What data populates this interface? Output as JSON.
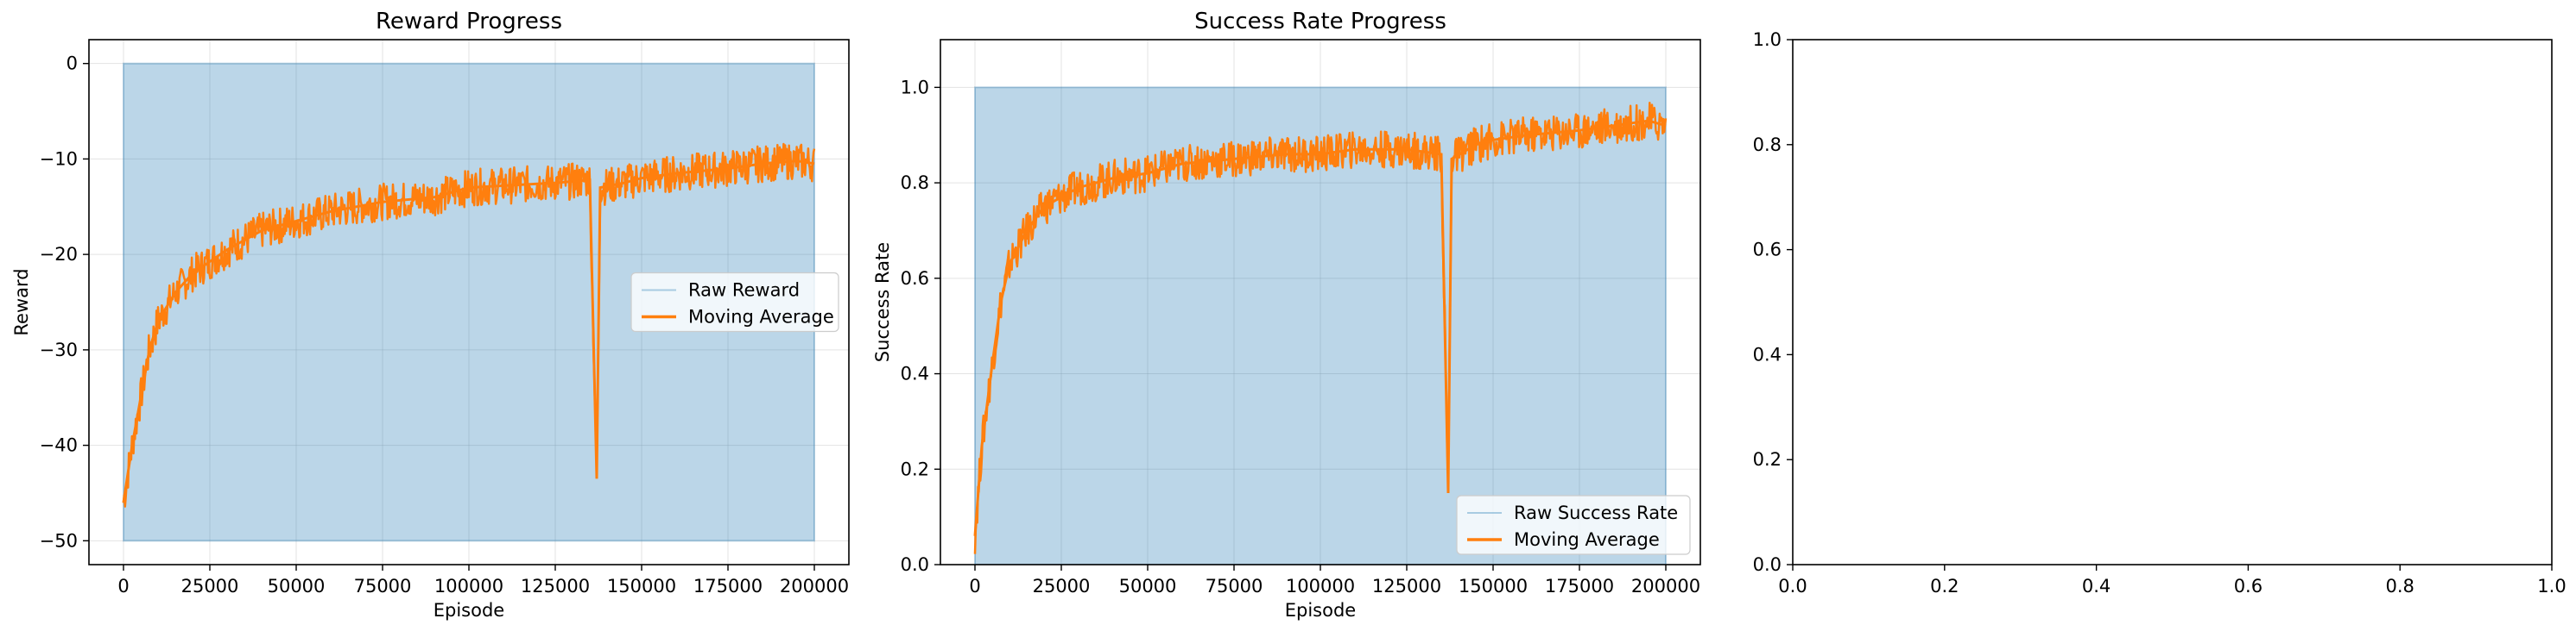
{
  "chart_data": [
    {
      "type": "line",
      "title": "Reward Progress",
      "xlabel": "Episode",
      "ylabel": "Reward",
      "xlim": [
        -10000,
        210000
      ],
      "ylim": [
        -52.5,
        2.5
      ],
      "xticks": [
        0,
        25000,
        50000,
        75000,
        100000,
        125000,
        150000,
        175000,
        200000
      ],
      "yticks": [
        -50,
        -40,
        -30,
        -20,
        -10,
        0
      ],
      "ytick_labels": [
        "−50",
        "−40",
        "−30",
        "−20",
        "−10",
        "0"
      ],
      "grid": true,
      "legend_location": "center right",
      "series": [
        {
          "name": "Raw Reward",
          "style": "filled band (raw values oscillate densely between bounds)",
          "color": "#1f77b4",
          "x_range": [
            0,
            200000
          ],
          "y_range": [
            -50,
            0
          ]
        },
        {
          "name": "Moving Average",
          "color": "#ff7f0e",
          "x": [
            0,
            2500,
            5000,
            7500,
            10000,
            15000,
            20000,
            30000,
            40000,
            50000,
            60000,
            75000,
            90000,
            100000,
            110000,
            125000,
            135000,
            137000,
            138000,
            145000,
            150000,
            160000,
            175000,
            185000,
            195000,
            200000
          ],
          "y": [
            -46,
            -40,
            -35,
            -30,
            -27,
            -24,
            -22,
            -19.5,
            -17.5,
            -16.5,
            -15.5,
            -14.5,
            -14,
            -13,
            -12.8,
            -12.5,
            -12.2,
            -43.5,
            -13,
            -12.5,
            -12,
            -11.5,
            -11,
            -10.5,
            -10.2,
            -10.5
          ]
        }
      ]
    },
    {
      "type": "line",
      "title": "Success Rate Progress",
      "xlabel": "Episode",
      "ylabel": "Success Rate",
      "xlim": [
        -10000,
        210000
      ],
      "ylim": [
        0,
        1.1
      ],
      "xticks": [
        0,
        25000,
        50000,
        75000,
        100000,
        125000,
        150000,
        175000,
        200000
      ],
      "yticks": [
        0.0,
        0.2,
        0.4,
        0.6,
        0.8,
        1.0
      ],
      "ytick_labels": [
        "0.0",
        "0.2",
        "0.4",
        "0.6",
        "0.8",
        "1.0"
      ],
      "grid": true,
      "legend_location": "lower right",
      "series": [
        {
          "name": "Raw Success Rate",
          "style": "filled band (raw values oscillate densely between bounds)",
          "color": "#1f77b4",
          "x_range": [
            0,
            200000
          ],
          "y_range": [
            0,
            1
          ]
        },
        {
          "name": "Moving Average",
          "color": "#ff7f0e",
          "x": [
            0,
            2000,
            5000,
            7500,
            10000,
            15000,
            20000,
            30000,
            40000,
            50000,
            60000,
            75000,
            90000,
            100000,
            110000,
            125000,
            135000,
            137000,
            138000,
            145000,
            150000,
            160000,
            175000,
            185000,
            195000,
            200000
          ],
          "y": [
            0.06,
            0.25,
            0.42,
            0.55,
            0.63,
            0.7,
            0.75,
            0.79,
            0.81,
            0.82,
            0.84,
            0.85,
            0.86,
            0.86,
            0.87,
            0.87,
            0.86,
            0.15,
            0.85,
            0.88,
            0.89,
            0.9,
            0.91,
            0.92,
            0.93,
            0.92
          ]
        }
      ]
    },
    {
      "type": "line",
      "title": "",
      "xlim": [
        0,
        1
      ],
      "ylim": [
        0,
        1
      ],
      "xticks": [
        0.0,
        0.2,
        0.4,
        0.6,
        0.8,
        1.0
      ],
      "yticks": [
        0.0,
        0.2,
        0.4,
        0.6,
        0.8,
        1.0
      ],
      "xtick_labels": [
        "0.0",
        "0.2",
        "0.4",
        "0.6",
        "0.8",
        "1.0"
      ],
      "ytick_labels": [
        "0.0",
        "0.2",
        "0.4",
        "0.6",
        "0.8",
        "1.0"
      ],
      "grid": false,
      "series": []
    }
  ]
}
